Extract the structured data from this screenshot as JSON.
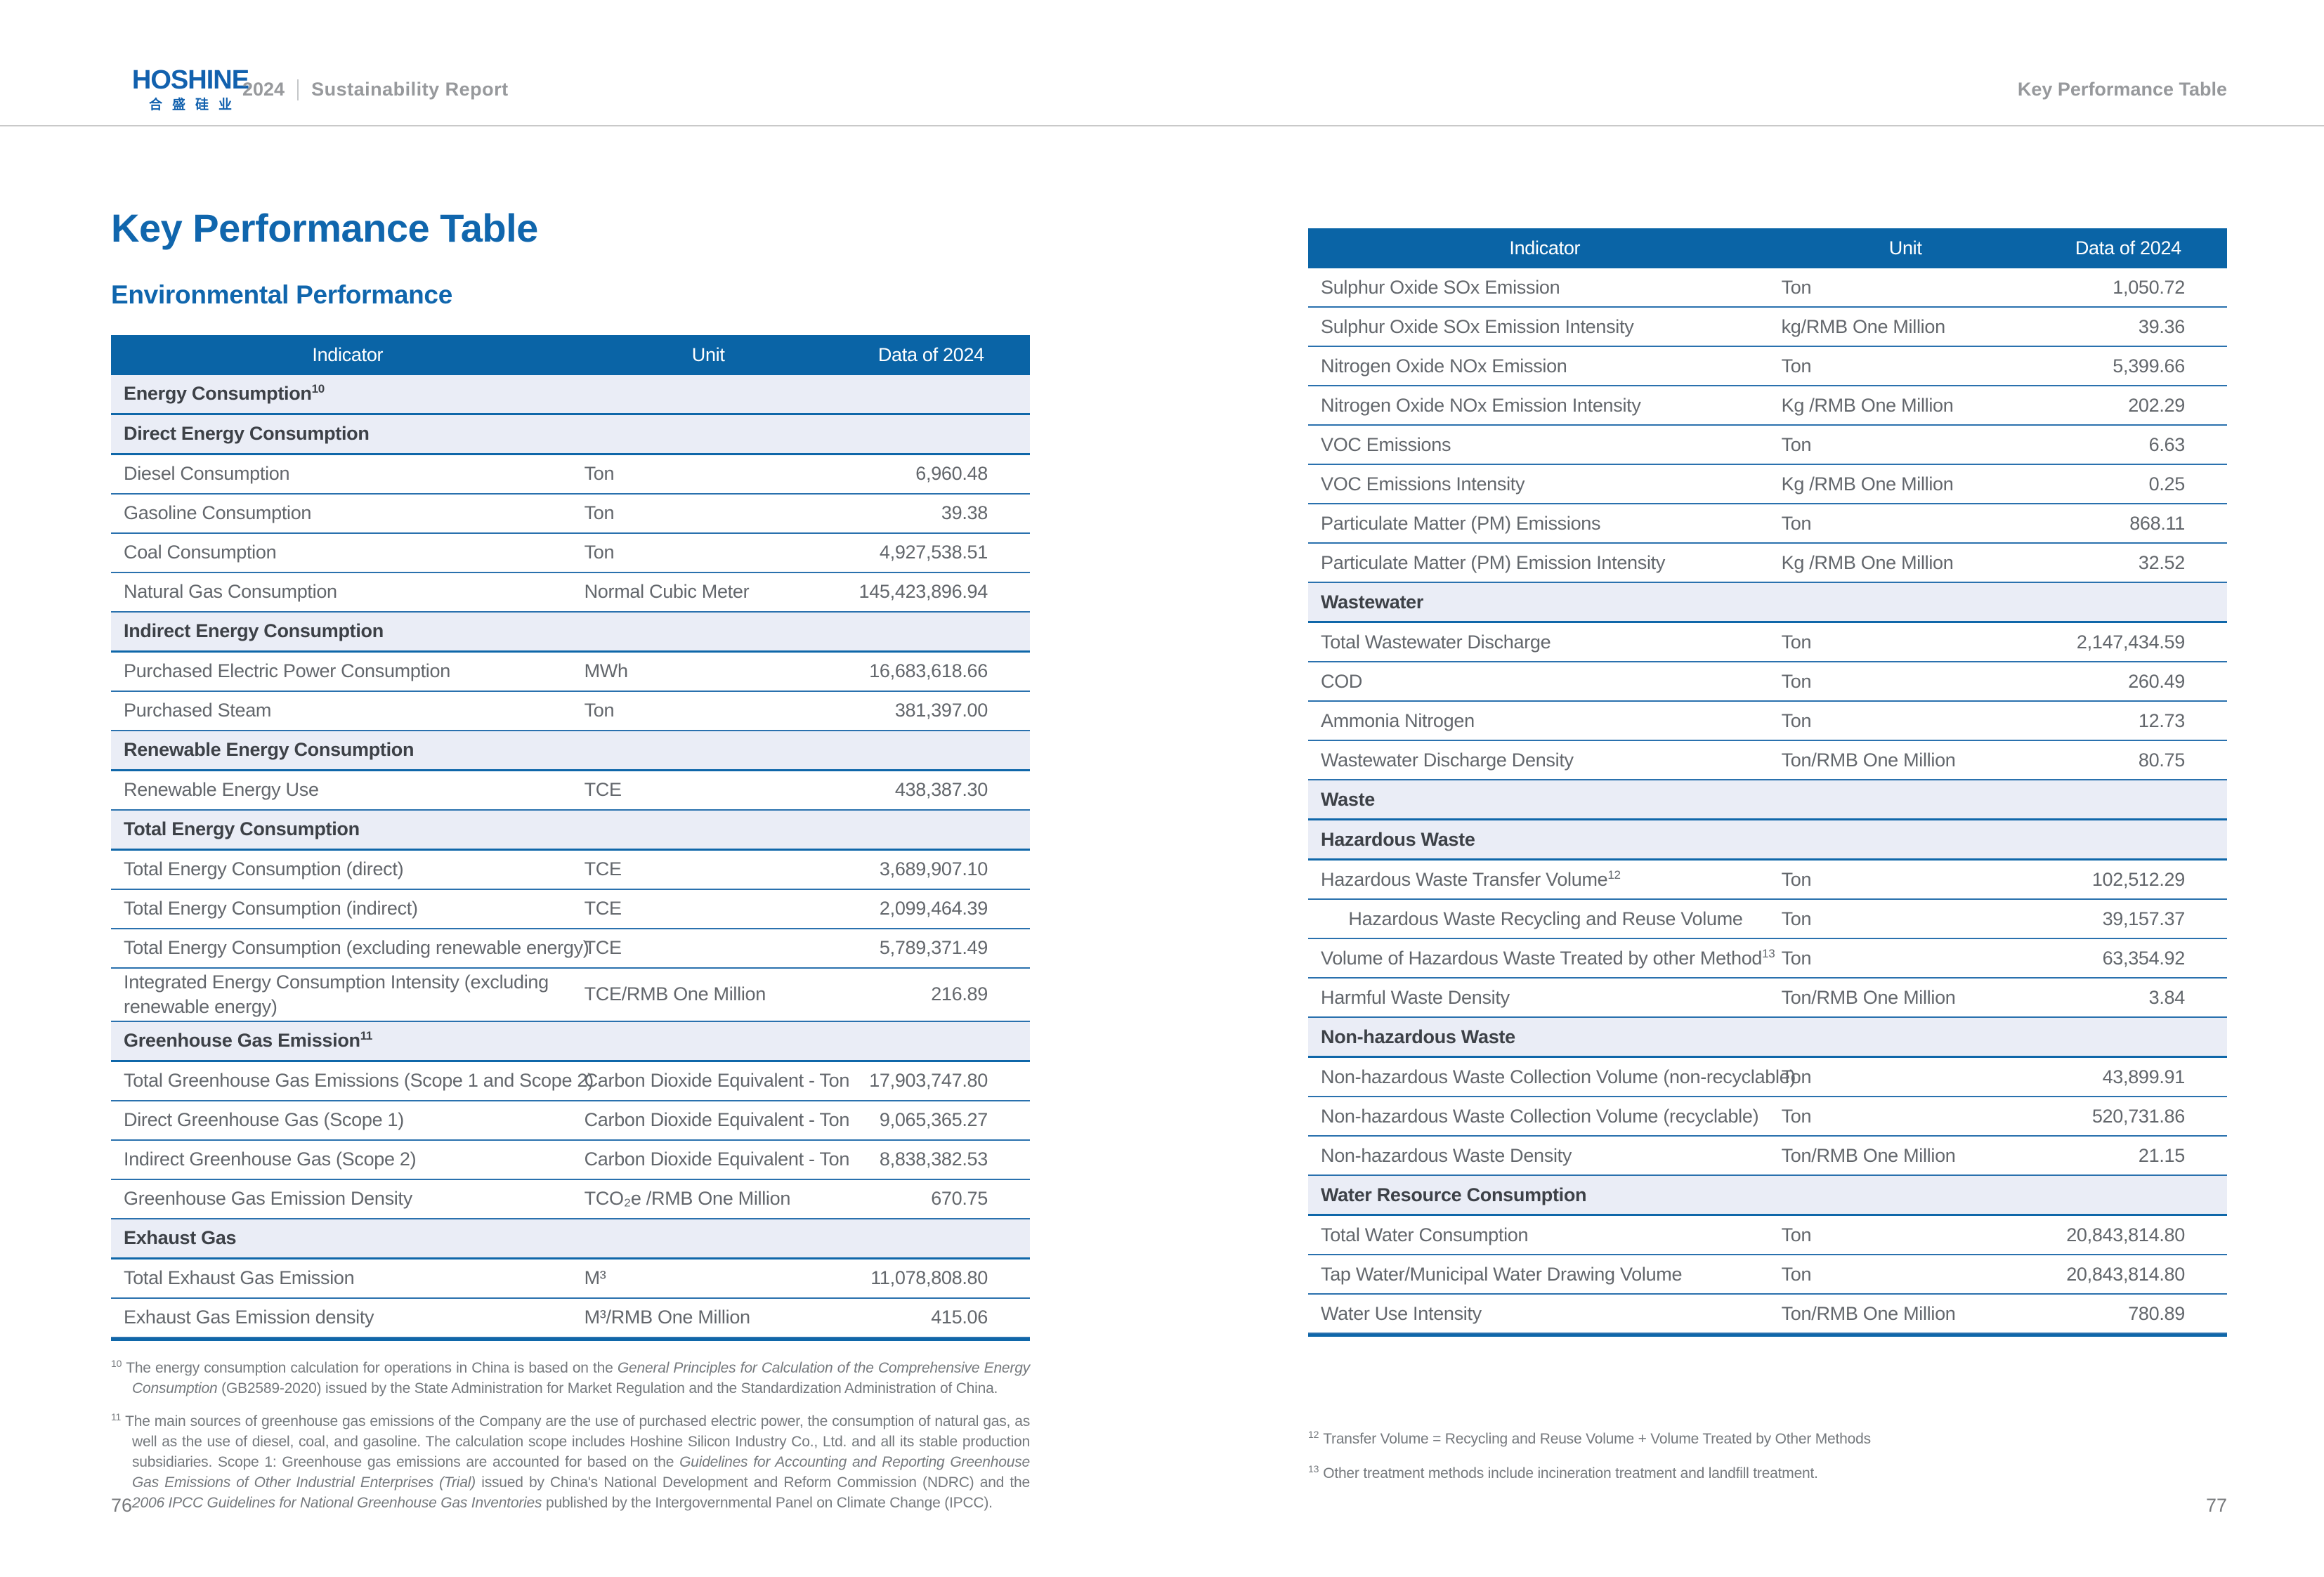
{
  "header": {
    "logo_title": "HOSHINE",
    "logo_cn": "合盛硅业",
    "year": "2024",
    "report_title": "Sustainability Report",
    "section_title": "Key Performance Table"
  },
  "page": {
    "title": "Key Performance Table",
    "subtitle": "Environmental Performance",
    "left_page_number": "76",
    "right_page_number": "77"
  },
  "colors": {
    "accent_blue": "#0a64a6",
    "title_blue": "#1066ad",
    "section_row_bg": "#eaedf6",
    "body_text_gray": "#63676c",
    "section_text": "#3d4147",
    "header_gray": "#97999c",
    "row_border_blue": "#0f67a9"
  },
  "columns": {
    "indicator": "Indicator",
    "unit": "Unit",
    "data": "Data of 2024"
  },
  "left_table": {
    "rows": [
      {
        "type": "section",
        "label": "Energy Consumption",
        "sup": "10"
      },
      {
        "type": "section",
        "label": "Direct Energy Consumption"
      },
      {
        "type": "data",
        "label": "Diesel Consumption",
        "unit": "Ton",
        "value": "6,960.48"
      },
      {
        "type": "data",
        "label": "Gasoline Consumption",
        "unit": "Ton",
        "value": "39.38"
      },
      {
        "type": "data",
        "label": "Coal Consumption",
        "unit": "Ton",
        "value": "4,927,538.51"
      },
      {
        "type": "data",
        "label": "Natural Gas Consumption",
        "unit": "Normal Cubic Meter",
        "value": "145,423,896.94"
      },
      {
        "type": "section",
        "label": "Indirect Energy Consumption"
      },
      {
        "type": "data",
        "label": "Purchased Electric Power Consumption",
        "unit": "MWh",
        "value": "16,683,618.66"
      },
      {
        "type": "data",
        "label": "Purchased Steam",
        "unit": "Ton",
        "value": "381,397.00"
      },
      {
        "type": "section",
        "label": "Renewable Energy Consumption"
      },
      {
        "type": "data",
        "label": "Renewable Energy Use",
        "unit": "TCE",
        "value": "438,387.30"
      },
      {
        "type": "section",
        "label": "Total Energy Consumption"
      },
      {
        "type": "data",
        "label": "Total Energy Consumption (direct)",
        "unit": "TCE",
        "value": "3,689,907.10"
      },
      {
        "type": "data",
        "label": "Total Energy Consumption (indirect)",
        "unit": "TCE",
        "value": "2,099,464.39"
      },
      {
        "type": "data",
        "label": "Total Energy Consumption (excluding renewable energy)",
        "unit": "TCE",
        "value": "5,789,371.49"
      },
      {
        "type": "data",
        "tall": true,
        "label": "Integrated Energy Consumption Intensity (excluding renewable energy)",
        "unit": "TCE/RMB One Million",
        "value": "216.89"
      },
      {
        "type": "section",
        "label": "Greenhouse Gas Emission",
        "sup": "11"
      },
      {
        "type": "data",
        "label": "Total Greenhouse Gas Emissions (Scope 1 and Scope 2)",
        "unit": "Carbon Dioxide Equivalent - Ton",
        "value": "17,903,747.80"
      },
      {
        "type": "data",
        "label": "Direct Greenhouse Gas (Scope 1)",
        "unit": "Carbon Dioxide Equivalent - Ton",
        "value": "9,065,365.27"
      },
      {
        "type": "data",
        "label": "Indirect Greenhouse Gas (Scope 2)",
        "unit": "Carbon Dioxide Equivalent - Ton",
        "value": "8,838,382.53"
      },
      {
        "type": "data",
        "label": "Greenhouse Gas Emission Density",
        "unit": "TCO₂e /RMB One Million",
        "value": "670.75"
      },
      {
        "type": "section",
        "label": "Exhaust Gas"
      },
      {
        "type": "data",
        "label": "Total Exhaust Gas Emission",
        "unit": "M³",
        "value": "11,078,808.80"
      },
      {
        "type": "data",
        "label": "Exhaust Gas Emission density",
        "unit": "M³/RMB One Million",
        "value": "415.06"
      }
    ]
  },
  "right_table": {
    "rows": [
      {
        "type": "data",
        "label": "Sulphur Oxide SOx Emission",
        "unit": "Ton",
        "value": "1,050.72"
      },
      {
        "type": "data",
        "label": "Sulphur Oxide SOx Emission Intensity",
        "unit": "kg/RMB One Million",
        "value": "39.36"
      },
      {
        "type": "data",
        "label": "Nitrogen Oxide NOx Emission",
        "unit": "Ton",
        "value": "5,399.66"
      },
      {
        "type": "data",
        "label": "Nitrogen Oxide NOx Emission Intensity",
        "unit": "Kg /RMB One Million",
        "value": "202.29"
      },
      {
        "type": "data",
        "label": "VOC Emissions",
        "unit": "Ton",
        "value": "6.63"
      },
      {
        "type": "data",
        "label": "VOC Emissions Intensity",
        "unit": "Kg /RMB One Million",
        "value": "0.25"
      },
      {
        "type": "data",
        "label": "Particulate Matter (PM) Emissions",
        "unit": "Ton",
        "value": "868.11"
      },
      {
        "type": "data",
        "label": "Particulate Matter (PM) Emission Intensity",
        "unit": "Kg /RMB One Million",
        "value": "32.52"
      },
      {
        "type": "section",
        "label": "Wastewater"
      },
      {
        "type": "data",
        "label": "Total Wastewater Discharge",
        "unit": "Ton",
        "value": "2,147,434.59"
      },
      {
        "type": "data",
        "label": "COD",
        "unit": "Ton",
        "value": "260.49"
      },
      {
        "type": "data",
        "label": "Ammonia Nitrogen",
        "unit": "Ton",
        "value": "12.73"
      },
      {
        "type": "data",
        "label": "Wastewater Discharge Density",
        "unit": "Ton/RMB One Million",
        "value": "80.75"
      },
      {
        "type": "section",
        "label": "Waste"
      },
      {
        "type": "section",
        "label": "Hazardous Waste"
      },
      {
        "type": "data",
        "label": "Hazardous Waste Transfer Volume",
        "sup": "12",
        "unit": "Ton",
        "value": "102,512.29"
      },
      {
        "type": "data",
        "indent": true,
        "label": "Hazardous Waste Recycling and Reuse Volume",
        "unit": "Ton",
        "value": "39,157.37"
      },
      {
        "type": "data",
        "indent": true,
        "label": "Volume of Hazardous Waste Treated by other Method",
        "sup": "13",
        "unit": "Ton",
        "value": "63,354.92"
      },
      {
        "type": "data",
        "label": "Harmful Waste Density",
        "unit": "Ton/RMB One Million",
        "value": "3.84"
      },
      {
        "type": "section",
        "label": "Non-hazardous Waste"
      },
      {
        "type": "data",
        "label": "Non-hazardous Waste Collection Volume (non-recyclable)",
        "unit": "Ton",
        "value": "43,899.91"
      },
      {
        "type": "data",
        "label": "Non-hazardous Waste Collection Volume (recyclable)",
        "unit": "Ton",
        "value": "520,731.86"
      },
      {
        "type": "data",
        "label": "Non-hazardous Waste Density",
        "unit": "Ton/RMB One Million",
        "value": "21.15"
      },
      {
        "type": "section",
        "label": "Water Resource Consumption"
      },
      {
        "type": "data",
        "label": "Total Water Consumption",
        "unit": "Ton",
        "value": "20,843,814.80"
      },
      {
        "type": "data",
        "label": "Tap Water/Municipal Water Drawing Volume",
        "unit": "Ton",
        "value": "20,843,814.80"
      },
      {
        "type": "data",
        "label": "Water Use Intensity",
        "unit": "Ton/RMB One Million",
        "value": "780.89"
      }
    ]
  },
  "left_footnotes": [
    {
      "num": "10",
      "segments": [
        {
          "text": "The energy consumption calculation for operations in China is based on the "
        },
        {
          "text": "General Principles for Calculation of the Comprehensive Energy Consumption",
          "italic": true
        },
        {
          "text": " (GB2589-2020) issued by the State Administration for Market Regulation and the Standardization Administration of China."
        }
      ]
    },
    {
      "num": "11",
      "segments": [
        {
          "text": "The main sources of greenhouse gas emissions of the Company are the use of purchased electric power, the consumption of natural gas, as well as the use of diesel, coal, and gasoline. The calculation scope includes Hoshine Silicon Industry Co., Ltd. and all its stable production subsidiaries. Scope 1: Greenhouse gas emissions are accounted for based on the "
        },
        {
          "text": "Guidelines for Accounting and Reporting Greenhouse Gas Emissions of Other Industrial Enterprises (Trial)",
          "italic": true
        },
        {
          "text": " issued by China's National Development and Reform Commission (NDRC) and the "
        },
        {
          "text": "2006 IPCC Guidelines for National Greenhouse Gas Inventories",
          "italic": true
        },
        {
          "text": " published by the Intergovernmental Panel on Climate Change (IPCC)."
        }
      ]
    }
  ],
  "right_footnotes": [
    {
      "num": "12",
      "segments": [
        {
          "text": "Transfer Volume = Recycling and Reuse Volume + Volume Treated by Other Methods"
        }
      ]
    },
    {
      "num": "13",
      "segments": [
        {
          "text": "Other treatment methods include incineration treatment and landfill treatment."
        }
      ]
    }
  ]
}
